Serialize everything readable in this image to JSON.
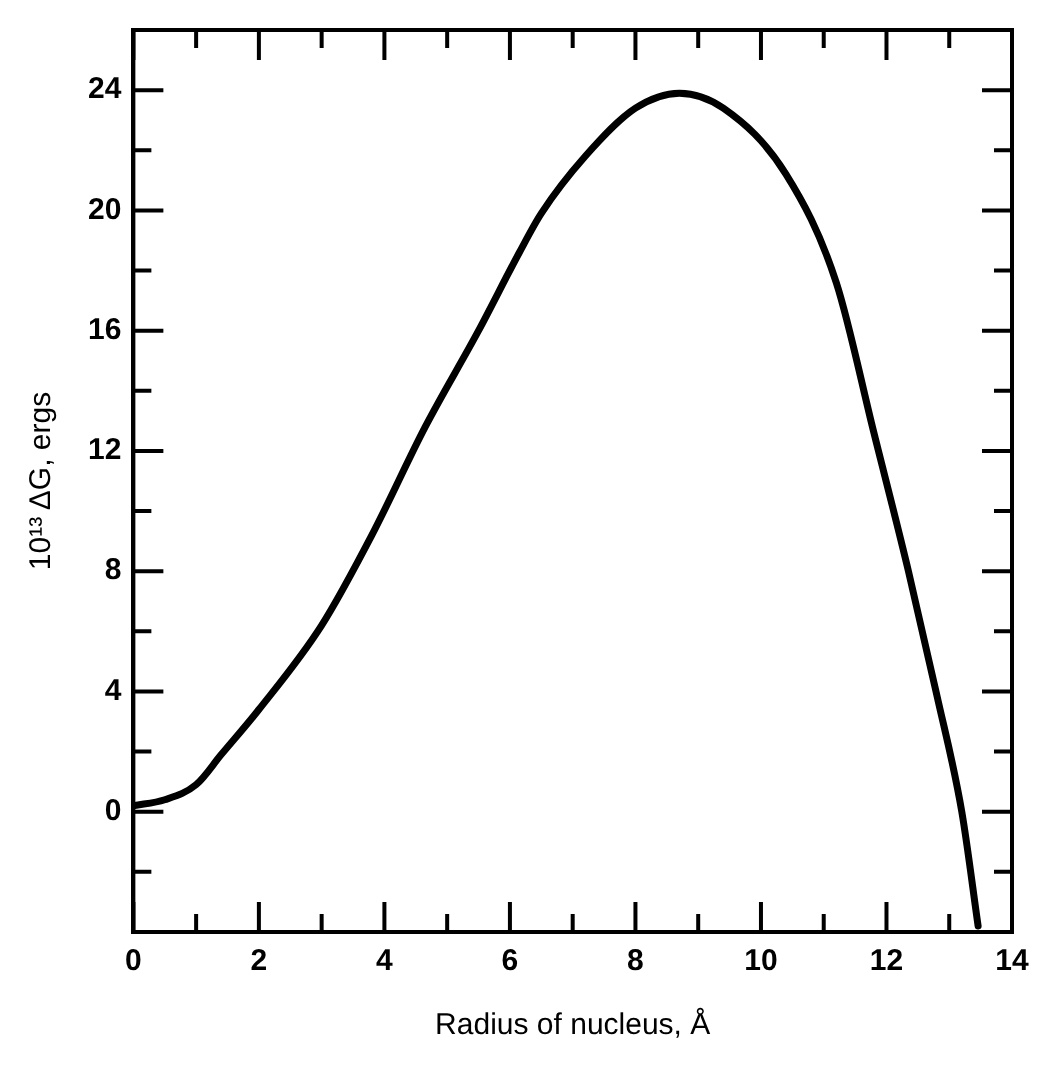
{
  "chart_data": {
    "type": "line",
    "xlabel": "Radius of nucleus, Å",
    "ylabel": "10¹³ ΔG, ergs",
    "x": [
      0,
      0.5,
      1,
      1.4,
      2,
      3,
      3.8,
      4.65,
      5.5,
      6.15,
      6.5,
      7.2,
      8,
      8.7,
      9.4,
      10.4,
      11.2,
      11.8,
      12.35,
      12.8,
      13.2,
      13.46
    ],
    "series": [
      {
        "color": "#000000",
        "values": [
          0.2,
          0.4,
          0.9,
          1.9,
          3.4,
          6.2,
          9.2,
          12.8,
          16,
          18.6,
          19.9,
          21.8,
          23.4,
          23.9,
          23.4,
          21.2,
          17.6,
          12.6,
          8,
          3.9,
          0,
          -3.8
        ]
      }
    ],
    "xlim": [
      0,
      14
    ],
    "xticks": [
      0,
      {
        "value": 1,
        "label": null
      },
      2,
      {
        "value": 3,
        "label": null
      },
      4,
      {
        "value": 5,
        "label": null
      },
      6,
      {
        "value": 7,
        "label": null
      },
      8,
      {
        "value": 9,
        "label": null
      },
      10,
      {
        "value": 11,
        "label": null
      },
      12,
      {
        "value": 13,
        "label": null
      },
      14
    ],
    "ylim": [
      -4,
      26
    ],
    "yticks": [
      {
        "value": -4,
        "label": null
      },
      {
        "value": -2,
        "label": null
      },
      0,
      {
        "value": 2,
        "label": null
      },
      4,
      {
        "value": 6,
        "label": null
      },
      8,
      {
        "value": 10,
        "label": null
      },
      12,
      {
        "value": 14,
        "label": null
      },
      16,
      {
        "value": 18,
        "label": null
      },
      20,
      {
        "value": 22,
        "label": null
      },
      24,
      {
        "value": 26,
        "label": null
      }
    ],
    "grid": false,
    "legend": false,
    "marker": "none",
    "line_style": "solid"
  }
}
